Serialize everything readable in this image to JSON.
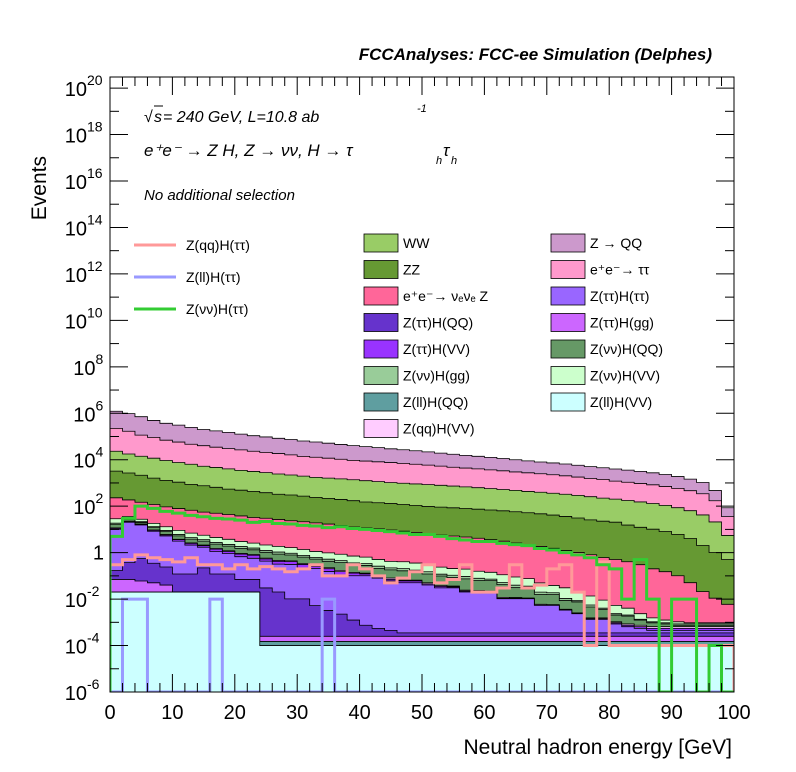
{
  "chart_data": {
    "type": "area",
    "title": "FCCAnalyses: FCC-ee Simulation (Delphes)",
    "xlabel": "Neutral hadron energy [GeV]",
    "ylabel": "Events",
    "xlim": [
      0,
      100
    ],
    "ylim": [
      1e-06,
      3e+20
    ],
    "y_scale": "log",
    "x_ticks": [
      "0",
      "10",
      "20",
      "30",
      "40",
      "50",
      "60",
      "70",
      "80",
      "90",
      "100"
    ],
    "y_ticks": [
      {
        "base": "10",
        "exp": "-6"
      },
      {
        "base": "10",
        "exp": "-4"
      },
      {
        "base": "10",
        "exp": "-2"
      },
      {
        "base": "1",
        "exp": ""
      },
      {
        "base": "10",
        "exp": "2"
      },
      {
        "base": "10",
        "exp": "4"
      },
      {
        "base": "10",
        "exp": "6"
      },
      {
        "base": "10",
        "exp": "8"
      },
      {
        "base": "10",
        "exp": "10"
      },
      {
        "base": "10",
        "exp": "12"
      },
      {
        "base": "10",
        "exp": "14"
      },
      {
        "base": "10",
        "exp": "16"
      },
      {
        "base": "10",
        "exp": "18"
      },
      {
        "base": "10",
        "exp": "20"
      }
    ],
    "annotations": {
      "energy_sqrt": "s",
      "energy_rest": " = 240 GeV, L=10.8 ab",
      "energy_exp": "-1",
      "process": "e⁺e⁻ → Z H, Z → νν, H → τ",
      "process_sub1": "h",
      "process_tau2": "τ",
      "process_sub2": "h",
      "selection": "No additional selection"
    },
    "stacked_series": [
      {
        "name": "Z(ll)H(VV)",
        "color": "#ccffff",
        "values": [
          0.02,
          0.02,
          0.02,
          0.02,
          0.02,
          0.02,
          0.02,
          0.02,
          0.02,
          0.02,
          0.02,
          0.02,
          0.0001,
          0.0001,
          0.0001,
          0.0001,
          0.0001,
          0.0001,
          0.0001,
          0.0001,
          0.0001,
          0.0001,
          0.0001,
          0.0001,
          0.0001,
          0.0001,
          0.0001,
          0.0001,
          0.0001,
          0.0001,
          0.0001,
          0.0001,
          0.0001,
          0.0001,
          0.0001,
          0.0001,
          0.0001,
          0.0001,
          0.0001,
          0.0001,
          0.0001,
          0.0001,
          0.0001,
          0.0001,
          0.0001,
          0.0001,
          0.0001,
          0.0001,
          0.0001,
          0.0001
        ]
      },
      {
        "name": "Z(ll)H(QQ)",
        "color": "#5f9ea0",
        "values": [
          0.0001,
          0.0001,
          0.0001,
          0.0001,
          0.0001,
          5e-05,
          5e-05,
          5e-05,
          5e-05,
          5e-05,
          5e-05,
          5e-05,
          5e-05,
          5e-05,
          5e-05,
          5e-05,
          5e-05,
          5e-05,
          5e-05,
          5e-05,
          5e-05,
          5e-05,
          5e-05,
          5e-05,
          5e-05,
          5e-05,
          5e-05,
          5e-05,
          5e-05,
          5e-05,
          5e-05,
          5e-05,
          5e-05,
          5e-05,
          5e-05,
          5e-05,
          5e-05,
          5e-05,
          5e-05,
          5e-05,
          5e-05,
          5e-05,
          5e-05,
          5e-05,
          5e-05,
          5e-05,
          5e-05,
          5e-05,
          5e-05,
          5e-05
        ]
      },
      {
        "name": "Z(ττ)H(gg)",
        "color": "#cc66ff",
        "values": [
          0.05,
          0.05,
          0.04,
          0.03,
          0.02,
          0.0001,
          0.0001,
          0.0001,
          0.0001,
          0.0001,
          0.0001,
          0.0001,
          0.0001,
          0.0001,
          0.0001,
          0.0001,
          0.0001,
          0.0001,
          0.0001,
          0.0001,
          0.0001,
          0.0001,
          0.0001,
          0.0001,
          0.0001,
          0.0001,
          0.0001,
          0.0001,
          0.0001,
          0.0001,
          0.0001,
          0.0001,
          0.0001,
          0.0001,
          0.0001,
          0.0001,
          0.0001,
          0.0001,
          0.0001,
          0.0001,
          0.0001,
          0.0001,
          0.0001,
          0.0001,
          0.0001,
          0.0001,
          0.0001,
          0.0001,
          0.0001,
          0.0001
        ]
      },
      {
        "name": "Z(ττ)H(QQ)",
        "color": "#6633cc",
        "values": [
          0.1,
          0.3,
          0.5,
          0.3,
          0.2,
          0.1,
          0.1,
          0.2,
          0.1,
          0.1,
          0.05,
          0.05,
          0.03,
          0.02,
          0.01,
          0.01,
          0.005,
          0.003,
          0.002,
          0.001,
          0.0005,
          0.0003,
          0.0002,
          0.0001,
          0.0001,
          0.0001,
          0.0001,
          0.0001,
          0.0001,
          0.0001,
          0.0001,
          0.0001,
          0.0001,
          0.0001,
          0.0001,
          0.0001,
          0.0001,
          0.0001,
          0.0001,
          0.0001,
          0.0001,
          0.0001,
          0.0001,
          0.0001,
          0.0001,
          0.0001,
          0.0001,
          0.0001,
          0.0001,
          0.0001
        ]
      },
      {
        "name": "Z(ττ)H(ττ)",
        "color": "#9966ff",
        "values": [
          10,
          20,
          15,
          8,
          5,
          3,
          2,
          1.5,
          1,
          0.8,
          0.6,
          0.5,
          0.4,
          0.3,
          0.3,
          0.2,
          0.2,
          0.15,
          0.1,
          0.1,
          0.1,
          0.08,
          0.06,
          0.05,
          0.05,
          0.04,
          0.03,
          0.03,
          0.02,
          0.02,
          0.02,
          0.01,
          0.01,
          0.01,
          0.005,
          0.005,
          0.003,
          0.002,
          0.001,
          0.001,
          0.0005,
          0.0003,
          0.0002,
          0.0001,
          0.0001,
          0.0001,
          0.0001,
          0.0001,
          0.0001,
          0.0001
        ]
      },
      {
        "name": "Z(ττ)H(VV)",
        "color": "#9933ff",
        "values": [
          1,
          1,
          1,
          0.8,
          0.6,
          0.5,
          0.4,
          0.3,
          0.3,
          0.2,
          0.2,
          0.2,
          0.1,
          0.1,
          0.1,
          0.1,
          0.05,
          0.05,
          0.05,
          0.03,
          0.02,
          0.02,
          0.01,
          0.01,
          0.01,
          0.005,
          0.005,
          0.003,
          0.002,
          0.001,
          0.001,
          0.0005,
          0.0003,
          0.0002,
          0.0001,
          0.0001,
          0.0001,
          0.0001,
          0.0001,
          0.0001,
          0.0001,
          0.0001,
          0.0001,
          0.0001,
          0.0001,
          0.0001,
          0.0001,
          0.0001,
          0.0001,
          0.0001
        ]
      },
      {
        "name": "Z(qq)H(VV)",
        "color": "#ffccff",
        "values": [
          0.5,
          0.5,
          0.4,
          0.3,
          0.2,
          0.15,
          0.1,
          0.1,
          0.1,
          0.08,
          0.06,
          0.05,
          0.05,
          0.04,
          0.03,
          0.03,
          0.02,
          0.02,
          0.02,
          0.01,
          0.01,
          0.01,
          0.01,
          0.005,
          0.005,
          0.005,
          0.003,
          0.003,
          0.002,
          0.002,
          0.001,
          0.001,
          0.001,
          0.0005,
          0.0005,
          0.0003,
          0.0002,
          0.0001,
          0.0001,
          0.0001,
          0.0001,
          0.0001,
          0.0001,
          0.0001,
          0.0001,
          0.0001,
          0.0001,
          0.0001,
          0.0001,
          0.0001
        ]
      },
      {
        "name": "Z(νν)H(QQ)",
        "color": "#669966",
        "values": [
          5,
          4,
          3,
          2.5,
          2,
          1.5,
          1.2,
          1,
          0.8,
          0.7,
          0.6,
          0.5,
          0.45,
          0.4,
          0.35,
          0.3,
          0.25,
          0.2,
          0.2,
          0.15,
          0.15,
          0.1,
          0.1,
          0.1,
          0.08,
          0.07,
          0.06,
          0.05,
          0.05,
          0.04,
          0.04,
          0.03,
          0.02,
          0.02,
          0.01,
          0.01,
          0.005,
          0.005,
          0.003,
          0.002,
          0.001,
          0.001,
          0.0005,
          0.0003,
          0.0002,
          0.0001,
          0.0001,
          0.0001,
          0.0001,
          0.0001
        ]
      },
      {
        "name": "Z(νν)H(gg)",
        "color": "#99cc99",
        "values": [
          2,
          2,
          1.5,
          1.2,
          1,
          0.8,
          0.6,
          0.5,
          0.4,
          0.35,
          0.3,
          0.25,
          0.2,
          0.2,
          0.15,
          0.12,
          0.1,
          0.1,
          0.08,
          0.07,
          0.06,
          0.05,
          0.04,
          0.04,
          0.03,
          0.03,
          0.02,
          0.02,
          0.02,
          0.015,
          0.01,
          0.01,
          0.008,
          0.005,
          0.004,
          0.003,
          0.002,
          0.001,
          0.001,
          0.0005,
          0.0003,
          0.0002,
          0.0001,
          0.0001,
          0.0001,
          0.0001,
          0.0001,
          0.0001,
          0.0001,
          0.0001
        ]
      },
      {
        "name": "Z(νν)H(VV)",
        "color": "#ccffcc",
        "values": [
          10,
          8,
          6,
          5,
          4,
          3,
          2.5,
          2,
          1.8,
          1.5,
          1.2,
          1,
          0.9,
          0.8,
          0.7,
          0.6,
          0.5,
          0.45,
          0.4,
          0.35,
          0.3,
          0.25,
          0.2,
          0.2,
          0.18,
          0.15,
          0.12,
          0.1,
          0.1,
          0.08,
          0.07,
          0.06,
          0.05,
          0.04,
          0.03,
          0.02,
          0.02,
          0.01,
          0.008,
          0.005,
          0.003,
          0.002,
          0.001,
          0.0005,
          0.0003,
          0.0002,
          0.0001,
          0.0001,
          0.0001,
          0.0001
        ]
      },
      {
        "name": "e⁺e⁻→ νₑνₑ Z",
        "color": "#ff6699",
        "values": [
          200,
          150,
          120,
          100,
          80,
          70,
          60,
          50,
          45,
          40,
          35,
          30,
          28,
          25,
          22,
          20,
          18,
          16,
          14,
          12,
          11,
          10,
          9,
          8,
          7,
          6,
          5.5,
          5,
          4.5,
          4,
          3.5,
          3,
          2.5,
          2,
          1.8,
          1.5,
          1.2,
          1,
          0.8,
          0.6,
          0.5,
          0.4,
          0.3,
          0.2,
          0.15,
          0.1,
          0.05,
          0.02,
          0.01,
          0.005
        ]
      },
      {
        "name": "ZZ",
        "color": "#669933",
        "values": [
          3000,
          2500,
          2000,
          1500,
          1200,
          1000,
          800,
          700,
          600,
          500,
          450,
          400,
          350,
          300,
          280,
          250,
          220,
          200,
          180,
          160,
          140,
          130,
          120,
          110,
          100,
          90,
          85,
          80,
          75,
          70,
          65,
          60,
          55,
          50,
          45,
          40,
          35,
          30,
          25,
          22,
          20,
          15,
          12,
          10,
          8,
          6,
          4,
          2,
          1,
          0.5
        ]
      },
      {
        "name": "WW",
        "color": "#99cc66",
        "values": [
          20000,
          15000,
          12000,
          10000,
          8000,
          6500,
          5500,
          4500,
          4000,
          3500,
          3000,
          2700,
          2400,
          2100,
          1900,
          1700,
          1500,
          1400,
          1300,
          1200,
          1100,
          1000,
          900,
          850,
          800,
          750,
          700,
          650,
          600,
          550,
          500,
          460,
          420,
          380,
          350,
          320,
          290,
          260,
          230,
          200,
          180,
          160,
          140,
          120,
          100,
          80,
          60,
          40,
          20,
          5
        ]
      },
      {
        "name": "e⁺e⁻→ ττ",
        "color": "#ff99cc",
        "values": [
          200000,
          150000,
          100000,
          80000,
          60000,
          50000,
          40000,
          35000,
          30000,
          26000,
          23000,
          20000,
          18000,
          16000,
          14000,
          12000,
          11000,
          10000,
          9000,
          8000,
          7500,
          7000,
          6500,
          6000,
          5500,
          5000,
          4500,
          4000,
          3700,
          3400,
          3100,
          2800,
          2500,
          2300,
          2100,
          1900,
          1700,
          1500,
          1300,
          1200,
          1000,
          900,
          800,
          700,
          600,
          500,
          400,
          300,
          150,
          30
        ]
      },
      {
        "name": "Z → QQ",
        "color": "#cc99cc",
        "values": [
          1000000,
          800000,
          600000,
          400000,
          300000,
          250000,
          200000,
          160000,
          140000,
          120000,
          100000,
          85000,
          75000,
          65000,
          58000,
          50000,
          45000,
          40000,
          35000,
          31000,
          28000,
          25000,
          22000,
          20000,
          18000,
          16000,
          14000,
          12500,
          11000,
          10000,
          9000,
          8000,
          7000,
          6200,
          5500,
          5000,
          4500,
          4000,
          3500,
          3100,
          2800,
          2500,
          2200,
          1900,
          1600,
          1300,
          1000,
          700,
          300,
          50
        ]
      }
    ],
    "signal_lines": [
      {
        "name": "Z(qq)H(ττ)",
        "color": "#ff9999",
        "values": [
          0.3,
          0.5,
          0.8,
          0.6,
          0.5,
          0.4,
          0.6,
          0.3,
          0.3,
          0.2,
          0.3,
          0.2,
          0.25,
          0.2,
          0.15,
          0.2,
          0.3,
          0.1,
          0.1,
          0.3,
          0.2,
          0.1,
          0.05,
          0.08,
          0.15,
          0.3,
          0.05,
          0.07,
          0.3,
          0.02,
          0.02,
          0.03,
          0.3,
          0.03,
          0.04,
          0.2,
          0.3,
          0.02,
          0.0001,
          0.4,
          0.0001,
          0.0001,
          0.0001,
          0.0001,
          0.0001,
          0.0001,
          0.0001,
          0.0001,
          0.0001,
          0.0001
        ]
      },
      {
        "name": "Z(ll)H(ττ)",
        "color": "#9999ff",
        "values": [
          1e-06,
          0.01,
          0.01,
          1e-06,
          1e-06,
          1e-06,
          1e-06,
          1e-06,
          0.01,
          1e-06,
          1e-06,
          1e-06,
          1e-06,
          1e-06,
          1e-06,
          1e-06,
          1e-06,
          0.01,
          1e-06,
          1e-06,
          1e-06,
          1e-06,
          1e-06,
          1e-06,
          1e-06,
          1e-06,
          1e-06,
          1e-06,
          1e-06,
          1e-06,
          1e-06,
          1e-06,
          1e-06,
          1e-06,
          1e-06,
          1e-06,
          1e-06,
          1e-06,
          1e-06,
          1e-06,
          1e-06,
          1e-06,
          1e-06,
          1e-06,
          1e-06,
          1e-06,
          1e-06,
          1e-06,
          1e-06,
          1e-06
        ]
      },
      {
        "name": "Z(νν)H(ττ)",
        "color": "#33cc33",
        "values": [
          5,
          30,
          100,
          80,
          60,
          50,
          40,
          35,
          30,
          28,
          25,
          20,
          22,
          18,
          17,
          15,
          14,
          12,
          13,
          11,
          10,
          9,
          8,
          7,
          6,
          6,
          5,
          4,
          3.5,
          3,
          3,
          2.5,
          2.2,
          2,
          1.5,
          1.3,
          1,
          0.8,
          0.6,
          0.3,
          0.2,
          0.01,
          0.5,
          0.01,
          1e-06,
          0.01,
          0.01,
          1e-06,
          0.0001,
          1e-06
        ]
      }
    ],
    "legend_placement": "top"
  }
}
